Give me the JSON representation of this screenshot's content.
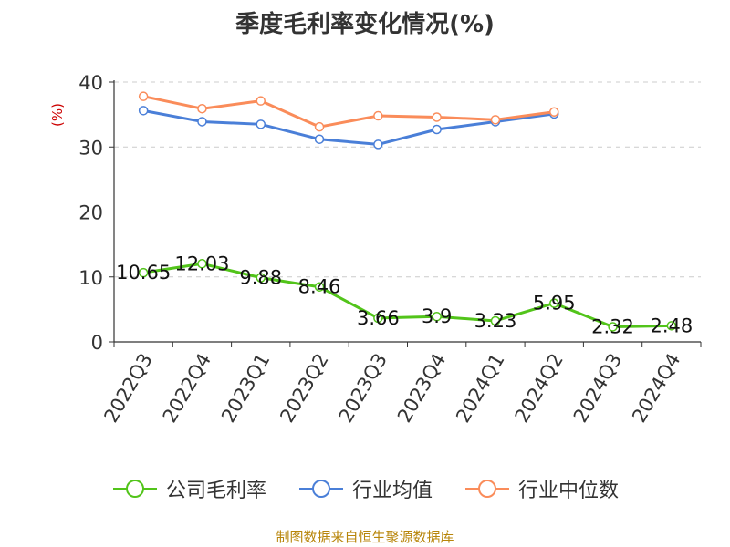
{
  "chart_data": {
    "type": "line",
    "title": "季度毛利率变化情况(%)",
    "ylabel": "(%)",
    "xlabel": "",
    "categories": [
      "2022Q3",
      "2022Q4",
      "2023Q1",
      "2023Q2",
      "2023Q3",
      "2023Q4",
      "2024Q1",
      "2024Q2",
      "2024Q3",
      "2024Q4"
    ],
    "ylim": [
      0,
      40
    ],
    "yticks": [
      0,
      10,
      20,
      30,
      40
    ],
    "grid": true,
    "legend_position": "bottom",
    "series": [
      {
        "name": "公司毛利率",
        "color": "#52c41a",
        "values": [
          10.65,
          12.03,
          9.88,
          8.46,
          3.66,
          3.9,
          3.23,
          5.95,
          2.32,
          2.48
        ],
        "labels": [
          "10.65",
          "12.03",
          "9.88",
          "8.46",
          "3.66",
          "3.9",
          "3.23",
          "5.95",
          "2.32",
          "2.48"
        ]
      },
      {
        "name": "行业均值",
        "color": "#4a7fd8",
        "values": [
          35.6,
          33.9,
          33.5,
          31.2,
          30.4,
          32.7,
          33.9,
          35.1,
          null,
          null
        ]
      },
      {
        "name": "行业中位数",
        "color": "#fa8c5a",
        "values": [
          37.8,
          35.9,
          37.1,
          33.1,
          34.8,
          34.6,
          34.2,
          35.4,
          null,
          null
        ]
      }
    ]
  },
  "source_text": "制图数据来自恒生聚源数据库"
}
